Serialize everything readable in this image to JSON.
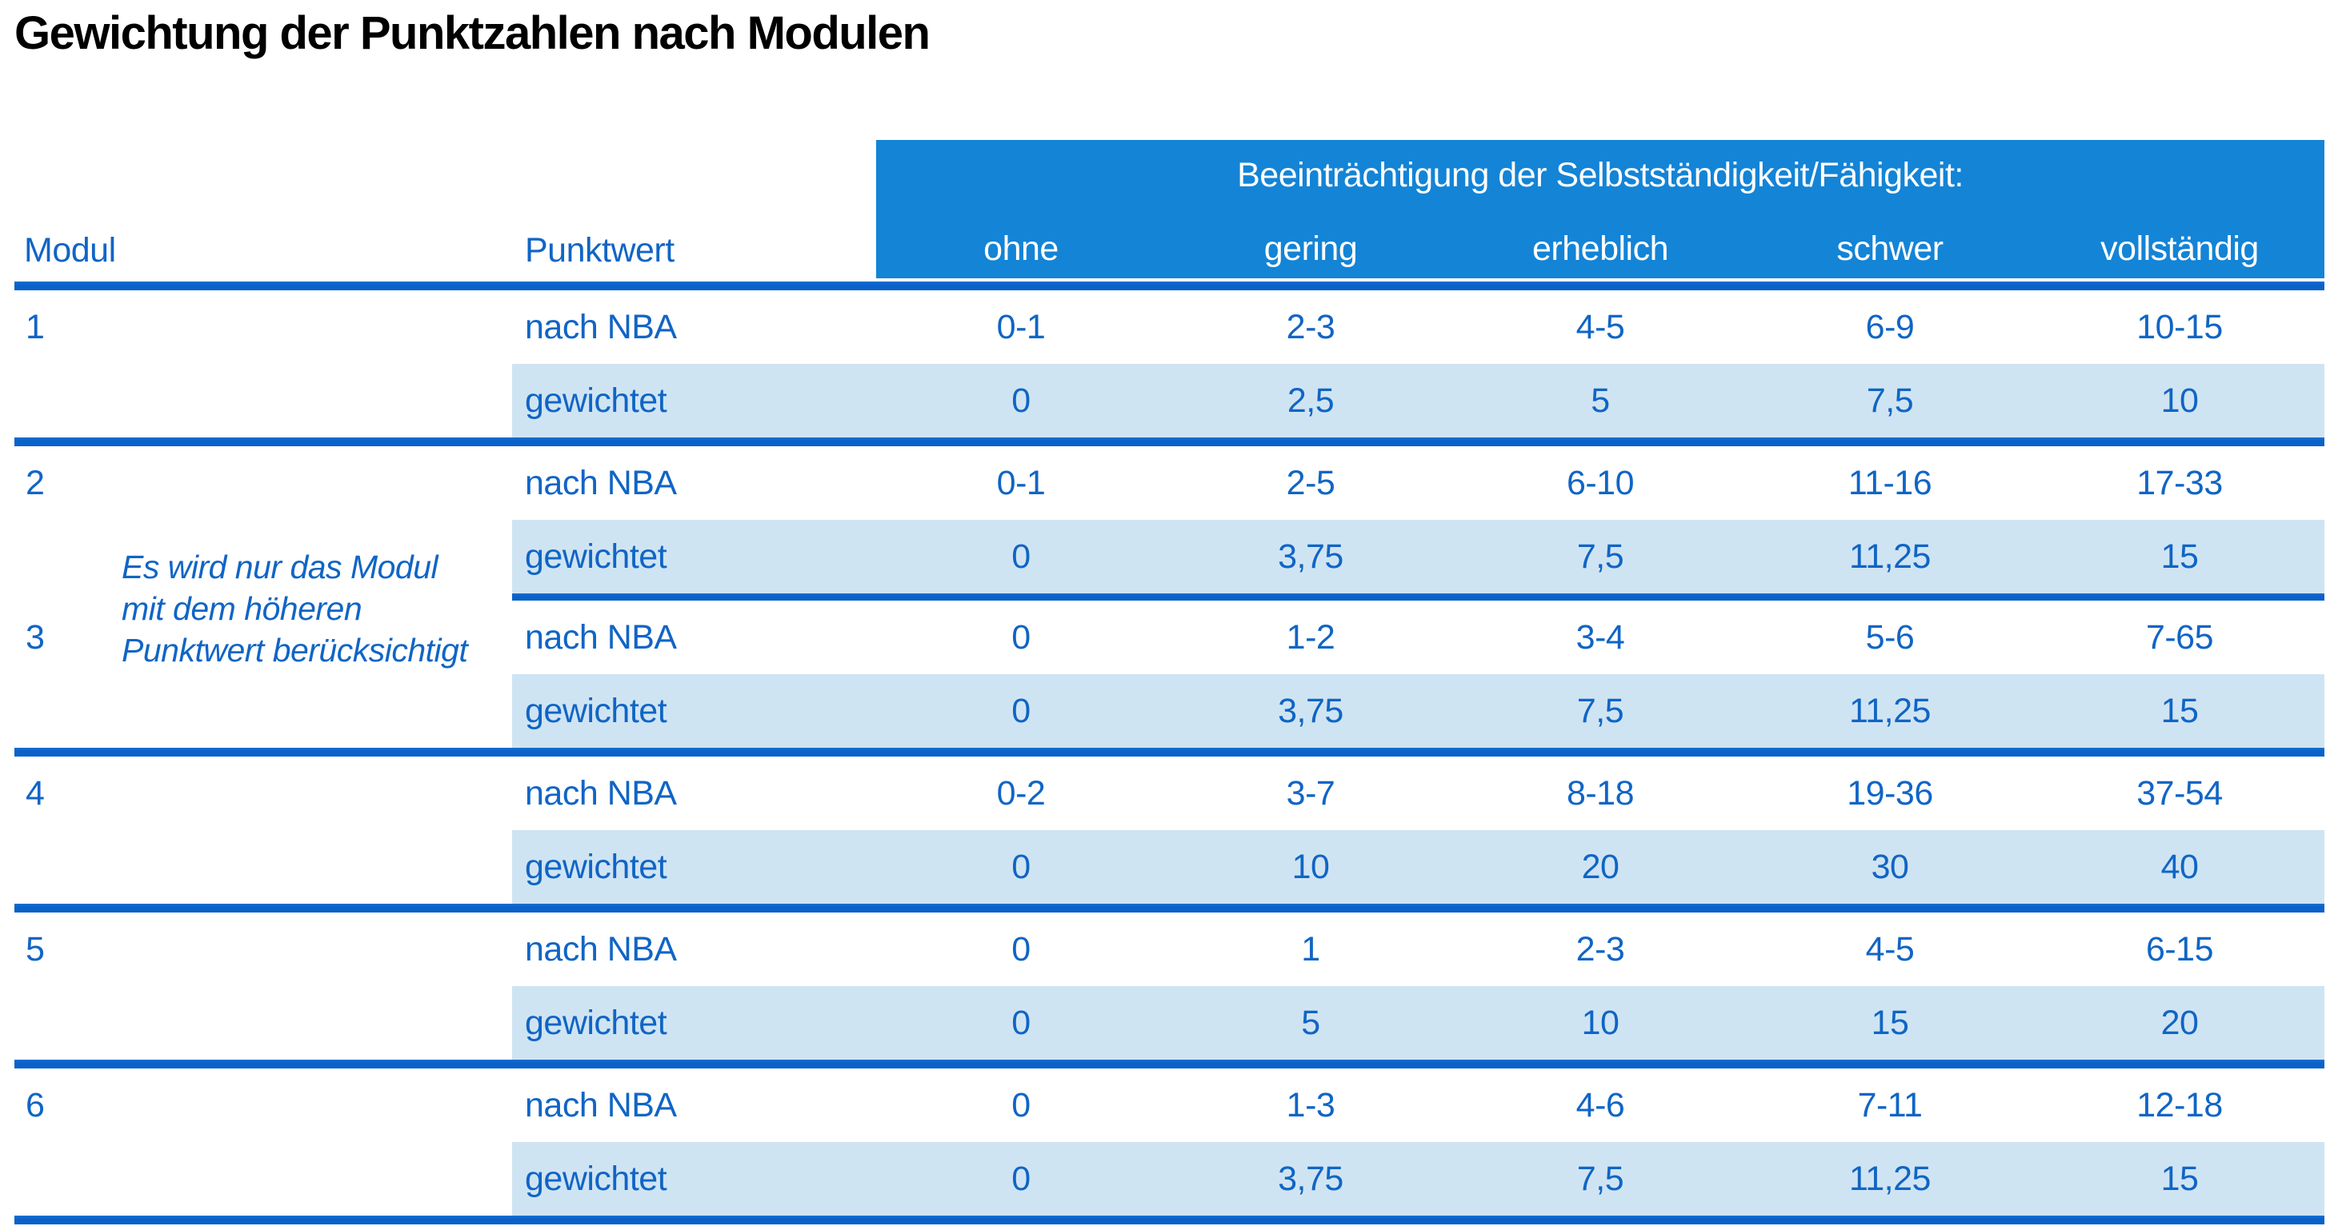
{
  "title": "Gewichtung der Punktzahlen nach Modulen",
  "colors": {
    "header_background": "#1484d6",
    "separator_line": "#0a61c9",
    "shaded_row": "#cfe4f3",
    "text_blue": "#1065c5",
    "title_text": "#000000",
    "header_text": "#ffffff"
  },
  "table": {
    "col_headers": {
      "modul": "Modul",
      "punktwert": "Punktwert"
    },
    "impairment_header": "Beeinträchtigung der Selbstständigkeit/Fähigkeit:",
    "severity_levels": [
      "ohne",
      "gering",
      "erheblich",
      "schwer",
      "vollständig"
    ],
    "row_labels": {
      "nba": "nach NBA",
      "gewichtet": "gewichtet"
    },
    "note_lines": [
      "Es wird nur das Modul",
      "mit dem höheren",
      "Punktwert berücksichtigt"
    ],
    "note_full": "Es wird nur das Modul mit dem höheren Punktwert berücksichtigt",
    "modules": [
      {
        "id": "1",
        "nba": [
          "0-1",
          "2-3",
          "4-5",
          "6-9",
          "10-15"
        ],
        "gewichtet": [
          "0",
          "2,5",
          "5",
          "7,5",
          "10"
        ]
      },
      {
        "id": "2",
        "nba": [
          "0-1",
          "2-5",
          "6-10",
          "11-16",
          "17-33"
        ],
        "gewichtet": [
          "0",
          "3,75",
          "7,5",
          "11,25",
          "15"
        ]
      },
      {
        "id": "3",
        "nba": [
          "0",
          "1-2",
          "3-4",
          "5-6",
          "7-65"
        ],
        "gewichtet": [
          "0",
          "3,75",
          "7,5",
          "11,25",
          "15"
        ]
      },
      {
        "id": "4",
        "nba": [
          "0-2",
          "3-7",
          "8-18",
          "19-36",
          "37-54"
        ],
        "gewichtet": [
          "0",
          "10",
          "20",
          "30",
          "40"
        ]
      },
      {
        "id": "5",
        "nba": [
          "0",
          "1",
          "2-3",
          "4-5",
          "6-15"
        ],
        "gewichtet": [
          "0",
          "5",
          "10",
          "15",
          "20"
        ]
      },
      {
        "id": "6",
        "nba": [
          "0",
          "1-3",
          "4-6",
          "7-11",
          "12-18"
        ],
        "gewichtet": [
          "0",
          "3,75",
          "7,5",
          "11,25",
          "15"
        ]
      }
    ]
  }
}
